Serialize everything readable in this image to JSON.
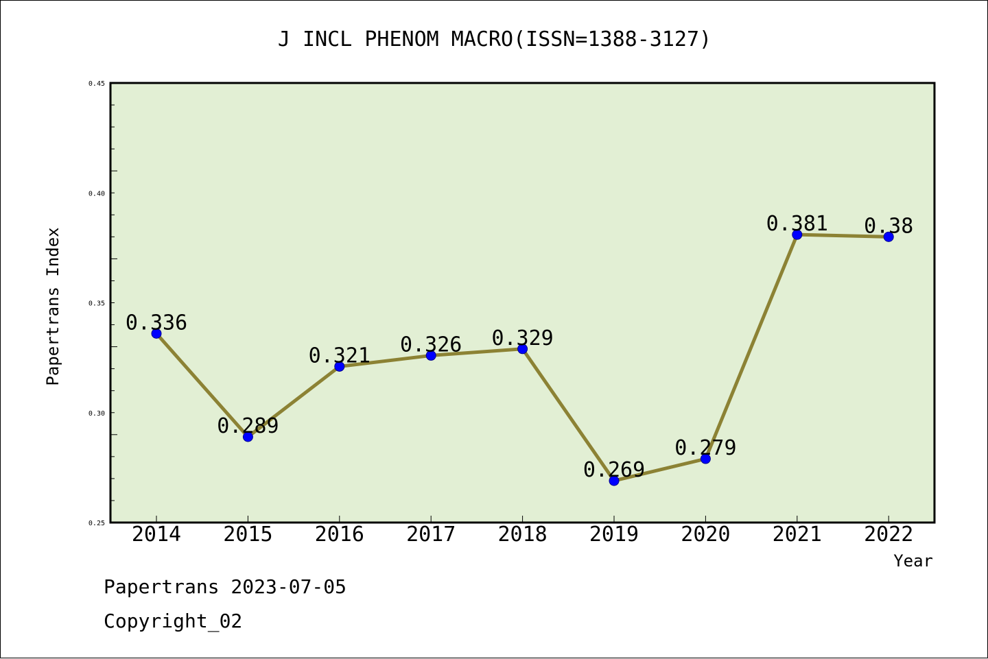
{
  "chart_data": {
    "type": "line",
    "title": "J INCL PHENOM MACRO(ISSN=1388-3127)",
    "xlabel": "Year",
    "ylabel": "Papertrans Index",
    "categories": [
      "2014",
      "2015",
      "2016",
      "2017",
      "2018",
      "2019",
      "2020",
      "2021",
      "2022"
    ],
    "values": [
      0.336,
      0.289,
      0.321,
      0.326,
      0.329,
      0.269,
      0.279,
      0.381,
      0.38
    ],
    "data_labels": [
      "0.336",
      "0.289",
      "0.321",
      "0.326",
      "0.329",
      "0.269",
      "0.279",
      "0.381",
      "0.38"
    ],
    "ylim": [
      0.25,
      0.45
    ],
    "yticks": [
      0.25,
      0.3,
      0.35,
      0.4,
      0.45
    ],
    "ytick_labels": [
      "0.25",
      "0.30",
      "0.35",
      "0.40",
      "0.45"
    ],
    "grid": false,
    "colors": {
      "plot_background": "#e2efd4",
      "line": "#8c8234",
      "marker": "#0000ff"
    }
  },
  "footer": {
    "line1": "Papertrans 2023-07-05",
    "line2": "Copyright_02"
  }
}
